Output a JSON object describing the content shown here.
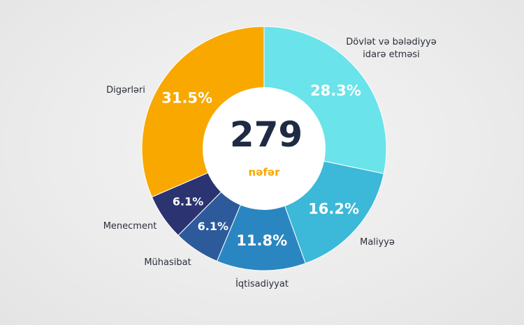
{
  "chart_data": {
    "type": "pie",
    "donut": true,
    "categories": [
      "Dövlət və bələdiyyə idarə etməsi",
      "Maliyyə",
      "İqtisadiyyat",
      "Mühasibat",
      "Menecment",
      "Digərləri"
    ],
    "values": [
      28.3,
      16.2,
      11.8,
      6.1,
      6.1,
      31.5
    ],
    "value_labels": [
      "28.3%",
      "16.2%",
      "11.8%",
      "6.1%",
      "6.1%",
      "31.5%"
    ],
    "colors": [
      "#6ae3ea",
      "#3cb8d8",
      "#2a86c0",
      "#2d5a9a",
      "#2b3370",
      "#f9a800"
    ],
    "center_value": 279,
    "center_label": "nəfər"
  }
}
